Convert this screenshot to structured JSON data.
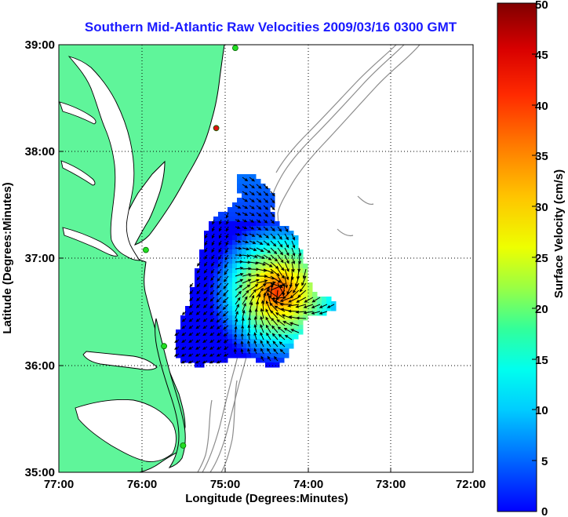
{
  "title": "Southern Mid-Atlantic Raw Velocities 2009/03/16 0300 GMT",
  "axes": {
    "xlabel": "Longitude (Degrees:Minutes)",
    "ylabel": "Latitude (Degrees:Minutes)",
    "x_ticks": [
      "77:00",
      "76:00",
      "75:00",
      "74:00",
      "73:00",
      "72:00"
    ],
    "y_ticks": [
      "39:00",
      "38:00",
      "37:00",
      "36:00",
      "35:00"
    ],
    "x_range_deg_west": [
      77,
      72
    ],
    "y_range_deg_north": [
      35,
      39
    ],
    "grid": "dotted"
  },
  "colorbar": {
    "label": "Surface Velocity (cm/s)",
    "ticks": [
      "50",
      "45",
      "40",
      "35",
      "30",
      "25",
      "20",
      "15",
      "10",
      "5",
      "0"
    ],
    "range": [
      0,
      50
    ],
    "colormap": "jet"
  },
  "colors": {
    "land": "#5ff59a",
    "water": "#ffffff",
    "coastline": "#000000",
    "bathymetry": "#8c8c8c",
    "title": "#1a1aff",
    "station_green": "#22dd22",
    "station_red": "#dd1111"
  },
  "stations": [
    {
      "color": "green",
      "lat": 38.97,
      "lon_w": 74.87
    },
    {
      "color": "red",
      "lat": 38.22,
      "lon_w": 75.1
    },
    {
      "color": "green",
      "lat": 37.08,
      "lon_w": 75.95
    },
    {
      "color": "green",
      "lat": 36.18,
      "lon_w": 75.73
    },
    {
      "color": "green",
      "lat": 35.25,
      "lon_w": 75.5
    }
  ]
}
